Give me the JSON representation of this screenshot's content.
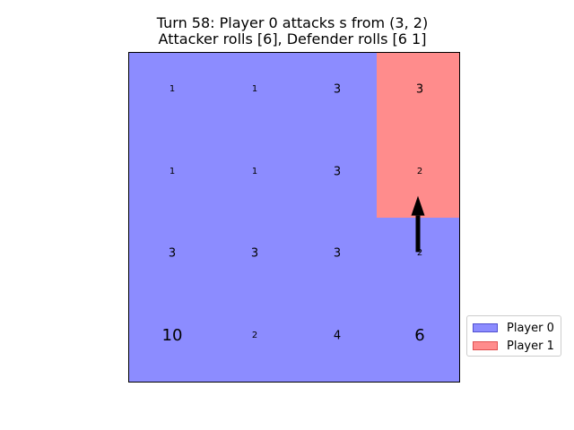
{
  "title": {
    "line1": "Turn 58: Player 0 attacks s from (3, 2)",
    "line2": "Attacker rolls [6], Defender rolls [6 1]"
  },
  "colors": {
    "player0_fill": "#8c8cff",
    "player1_fill": "#ff8c8c",
    "player0_legend_edge": "#5050d0",
    "player1_legend_edge": "#e05050",
    "arrow": "#000000"
  },
  "grid": {
    "rows": 4,
    "cols": 4,
    "cells": [
      [
        {
          "owner": 0,
          "label": "1",
          "size": "tiny"
        },
        {
          "owner": 0,
          "label": "1",
          "size": "tiny"
        },
        {
          "owner": 0,
          "label": "3",
          "size": "small"
        },
        {
          "owner": 1,
          "label": "3",
          "size": "small"
        }
      ],
      [
        {
          "owner": 0,
          "label": "1",
          "size": "tiny"
        },
        {
          "owner": 0,
          "label": "1",
          "size": "tiny"
        },
        {
          "owner": 0,
          "label": "3",
          "size": "small"
        },
        {
          "owner": 1,
          "label": "2",
          "size": "tiny"
        }
      ],
      [
        {
          "owner": 0,
          "label": "3",
          "size": "small"
        },
        {
          "owner": 0,
          "label": "3",
          "size": "small"
        },
        {
          "owner": 0,
          "label": "3",
          "size": "small"
        },
        {
          "owner": 0,
          "label": "2",
          "size": "tiny"
        }
      ],
      [
        {
          "owner": 0,
          "label": "10",
          "size": "large"
        },
        {
          "owner": 0,
          "label": "2",
          "size": "tiny"
        },
        {
          "owner": 0,
          "label": "4",
          "size": "small"
        },
        {
          "owner": 0,
          "label": "6",
          "size": "large"
        }
      ]
    ]
  },
  "attack": {
    "from": [
      2,
      3
    ],
    "to": [
      1,
      3
    ]
  },
  "legend": {
    "entries": [
      {
        "label": "Player 0",
        "owner": 0
      },
      {
        "label": "Player 1",
        "owner": 1
      }
    ]
  }
}
